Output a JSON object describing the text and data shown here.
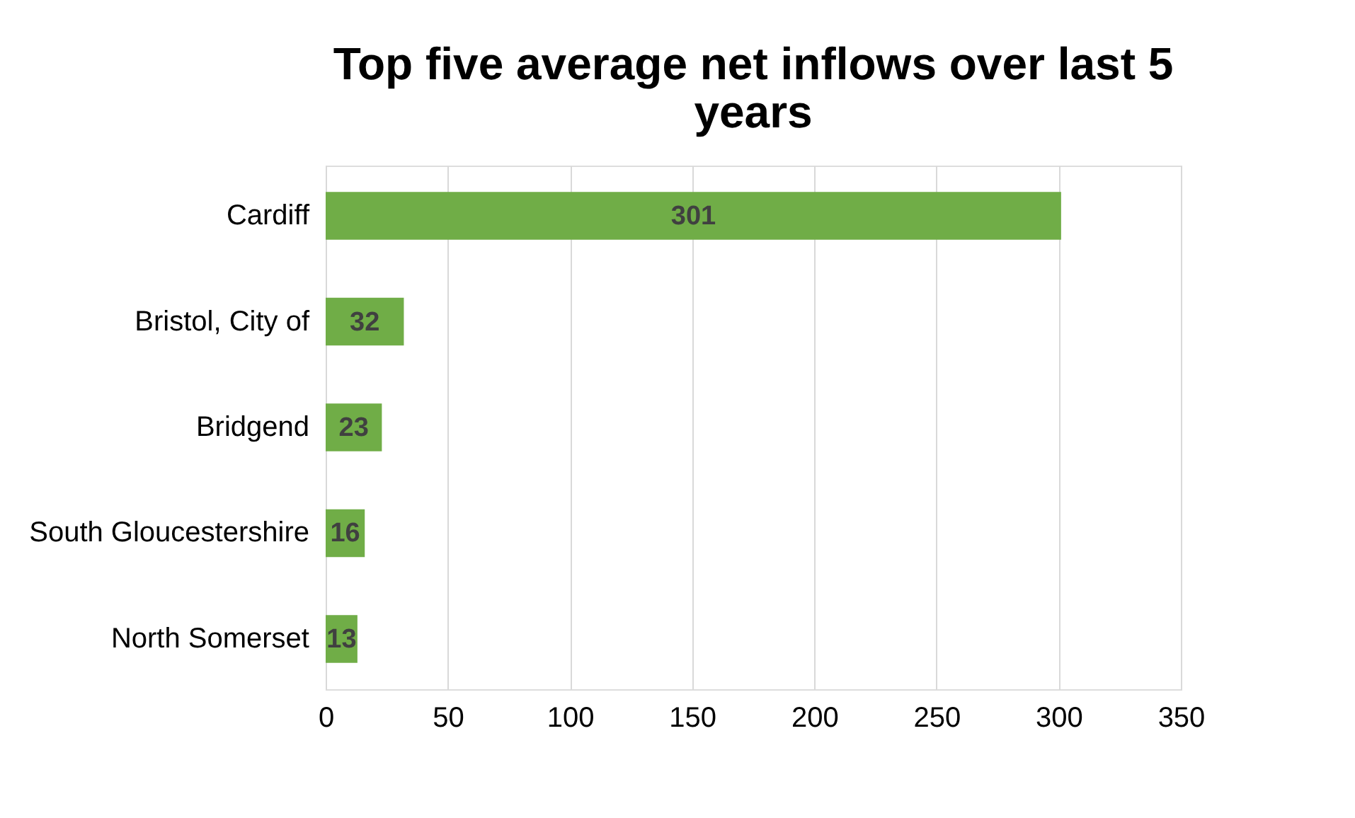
{
  "chart_data": {
    "type": "bar",
    "orientation": "horizontal",
    "title": "Top five average net inflows over last 5 years",
    "categories": [
      "Cardiff",
      "Bristol, City of",
      "Bridgend",
      "South Gloucestershire",
      "North Somerset"
    ],
    "values": [
      301,
      32,
      23,
      16,
      13
    ],
    "color": "#70ad47",
    "xlim": [
      0,
      350
    ],
    "xticks": [
      0,
      50,
      100,
      150,
      200,
      250,
      300,
      350
    ],
    "grid": "x",
    "data_labels": true
  }
}
